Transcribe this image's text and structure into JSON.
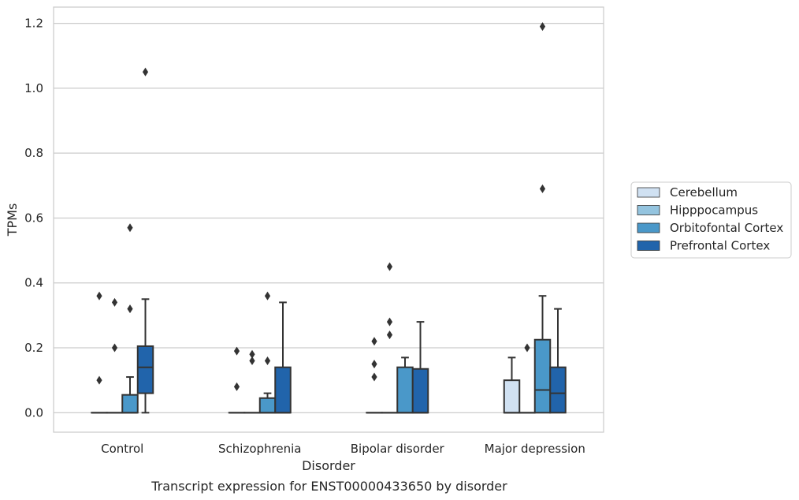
{
  "chart_data": {
    "type": "box",
    "caption": "Transcript expression for ENST00000433650 by disorder",
    "xlabel": "Disorder",
    "ylabel": "TPMs",
    "ylim": [
      -0.06,
      1.25
    ],
    "yticks": [
      0.0,
      0.2,
      0.4,
      0.6,
      0.8,
      1.0,
      1.2
    ],
    "ytick_labels": [
      "0.0",
      "0.2",
      "0.4",
      "0.6",
      "0.8",
      "1.0",
      "1.2"
    ],
    "grid": "horizontal",
    "legend_position": "right",
    "categories": [
      "Control",
      "Schizophrenia",
      "Bipolar disorder",
      "Major depression"
    ],
    "series": [
      {
        "name": "Cerebellum",
        "color": "#d0e1f2",
        "boxes": [
          {
            "q1": 0,
            "median": 0,
            "q3": 0,
            "whisker_low": 0,
            "whisker_high": 0,
            "outliers": [
              0.1,
              0.36
            ]
          },
          {
            "q1": 0,
            "median": 0,
            "q3": 0,
            "whisker_low": 0,
            "whisker_high": 0,
            "outliers": [
              0.08,
              0.19
            ]
          },
          {
            "q1": 0,
            "median": 0,
            "q3": 0,
            "whisker_low": 0,
            "whisker_high": 0,
            "outliers": [
              0.11,
              0.15,
              0.22
            ]
          },
          {
            "q1": 0,
            "median": 0,
            "q3": 0.1,
            "whisker_low": 0,
            "whisker_high": 0.17,
            "outliers": []
          }
        ]
      },
      {
        "name": "Hipppocampus",
        "color": "#94c4df",
        "boxes": [
          {
            "q1": 0,
            "median": 0,
            "q3": 0,
            "whisker_low": 0,
            "whisker_high": 0,
            "outliers": [
              0.2,
              0.34
            ]
          },
          {
            "q1": 0,
            "median": 0,
            "q3": 0,
            "whisker_low": 0,
            "whisker_high": 0,
            "outliers": [
              0.16,
              0.18
            ]
          },
          {
            "q1": 0,
            "median": 0,
            "q3": 0,
            "whisker_low": 0,
            "whisker_high": 0,
            "outliers": [
              0.24,
              0.28,
              0.45
            ]
          },
          {
            "q1": 0,
            "median": 0,
            "q3": 0,
            "whisker_low": 0,
            "whisker_high": 0,
            "outliers": [
              0.2
            ]
          }
        ]
      },
      {
        "name": "Orbitofontal Cortex",
        "color": "#4a98c9",
        "boxes": [
          {
            "q1": 0,
            "median": 0,
            "q3": 0.055,
            "whisker_low": 0,
            "whisker_high": 0.11,
            "outliers": [
              0.32,
              0.57
            ]
          },
          {
            "q1": 0,
            "median": 0,
            "q3": 0.045,
            "whisker_low": 0,
            "whisker_high": 0.06,
            "outliers": [
              0.16,
              0.36
            ]
          },
          {
            "q1": 0,
            "median": 0,
            "q3": 0.14,
            "whisker_low": 0,
            "whisker_high": 0.17,
            "outliers": []
          },
          {
            "q1": 0,
            "median": 0.07,
            "q3": 0.225,
            "whisker_low": 0,
            "whisker_high": 0.36,
            "outliers": [
              0.69,
              1.19
            ]
          }
        ]
      },
      {
        "name": "Prefrontal Cortex",
        "color": "#2164ab",
        "boxes": [
          {
            "q1": 0.06,
            "median": 0.14,
            "q3": 0.205,
            "whisker_low": 0,
            "whisker_high": 0.35,
            "outliers": [
              1.05
            ]
          },
          {
            "q1": 0,
            "median": 0,
            "q3": 0.14,
            "whisker_low": 0,
            "whisker_high": 0.34,
            "outliers": []
          },
          {
            "q1": 0,
            "median": 0,
            "q3": 0.135,
            "whisker_low": 0,
            "whisker_high": 0.28,
            "outliers": []
          },
          {
            "q1": 0,
            "median": 0.06,
            "q3": 0.14,
            "whisker_low": 0,
            "whisker_high": 0.32,
            "outliers": []
          }
        ]
      }
    ]
  }
}
